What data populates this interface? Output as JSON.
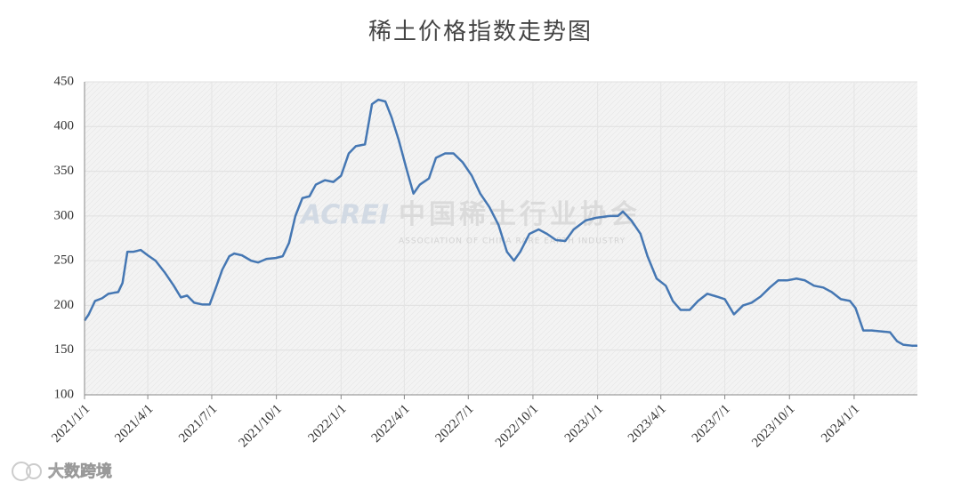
{
  "chart_data": {
    "type": "line",
    "title": "稀土价格指数走势图",
    "watermark": [
      "ACREI",
      "中国稀土行业协会",
      "ASSOCIATION OF CHINA RARE EARTH INDUSTRY"
    ],
    "source": "大数跨境",
    "xlim": [
      "2021/1/1",
      "2024/3/31"
    ],
    "xticks": [
      "2021/1/1",
      "2021/4/1",
      "2021/7/1",
      "2021/10/1",
      "2022/1/1",
      "2022/4/1",
      "2022/7/1",
      "2022/10/1",
      "2023/1/1",
      "2023/4/1",
      "2023/7/1",
      "2023/10/1",
      "2024/1/1"
    ],
    "ylim": [
      100,
      450
    ],
    "yticks": [
      100,
      150,
      200,
      250,
      300,
      350,
      400,
      450
    ],
    "grid": true,
    "series": [
      {
        "color": "#4577b3",
        "x": [
          "2021/1/1",
          "2021/1/7",
          "2021/1/16",
          "2021/1/26",
          "2021/2/4",
          "2021/2/18",
          "2021/2/24",
          "2021/3/3",
          "2021/3/12",
          "2021/3/22",
          "2021/4/1",
          "2021/4/12",
          "2021/4/25",
          "2021/5/8",
          "2021/5/18",
          "2021/5/27",
          "2021/6/6",
          "2021/6/18",
          "2021/6/28",
          "2021/7/7",
          "2021/7/16",
          "2021/7/26",
          "2021/8/2",
          "2021/8/13",
          "2021/8/26",
          "2021/9/5",
          "2021/9/17",
          "2021/9/30",
          "2021/10/10",
          "2021/10/19",
          "2021/10/28",
          "2021/11/7",
          "2021/11/17",
          "2021/11/26",
          "2021/12/9",
          "2021/12/21",
          "2022/1/1",
          "2022/1/12",
          "2022/1/22",
          "2022/2/4",
          "2022/2/14",
          "2022/2/23",
          "2022/3/5",
          "2022/3/14",
          "2022/3/24",
          "2022/4/5",
          "2022/4/14",
          "2022/4/23",
          "2022/5/6",
          "2022/5/16",
          "2022/5/29",
          "2022/6/10",
          "2022/6/23",
          "2022/7/6",
          "2022/7/18",
          "2022/7/31",
          "2022/8/13",
          "2022/8/25",
          "2022/9/4",
          "2022/9/13",
          "2022/9/26",
          "2022/10/9",
          "2022/10/21",
          "2022/11/3",
          "2022/11/16",
          "2022/11/28",
          "2022/12/15",
          "2022/12/30",
          "2023/1/18",
          "2023/1/30",
          "2023/2/6",
          "2023/2/18",
          "2023/3/3",
          "2023/3/13",
          "2023/3/26",
          "2023/4/8",
          "2023/4/18",
          "2023/4/29",
          "2023/5/12",
          "2023/5/24",
          "2023/6/6",
          "2023/6/19",
          "2023/7/1",
          "2023/7/14",
          "2023/7/27",
          "2023/8/8",
          "2023/8/21",
          "2023/9/3",
          "2023/9/15",
          "2023/9/28",
          "2023/10/11",
          "2023/10/23",
          "2023/11/5",
          "2023/11/18",
          "2023/11/30",
          "2023/12/13",
          "2023/12/26",
          "2024/1/3",
          "2024/1/14",
          "2024/1/26",
          "2024/2/8",
          "2024/2/21",
          "2024/3/2",
          "2024/3/11",
          "2024/3/23",
          "2024/3/31"
        ],
        "values": [
          183,
          190,
          205,
          208,
          213,
          215,
          225,
          260,
          260,
          262,
          256,
          250,
          237,
          222,
          209,
          211,
          203,
          201,
          201,
          220,
          240,
          255,
          258,
          256,
          250,
          248,
          252,
          253,
          255,
          270,
          300,
          320,
          322,
          335,
          340,
          338,
          345,
          370,
          378,
          380,
          425,
          430,
          428,
          410,
          385,
          350,
          325,
          335,
          342,
          365,
          370,
          370,
          360,
          345,
          325,
          310,
          290,
          260,
          250,
          260,
          280,
          285,
          280,
          273,
          272,
          285,
          295,
          298,
          300,
          300,
          305,
          295,
          280,
          255,
          230,
          222,
          205,
          195,
          195,
          205,
          213,
          210,
          207,
          190,
          200,
          203,
          210,
          220,
          228,
          228,
          230,
          228,
          222,
          220,
          215,
          207,
          205,
          197,
          172,
          172,
          171,
          170,
          160,
          156,
          155,
          155
        ]
      }
    ]
  }
}
